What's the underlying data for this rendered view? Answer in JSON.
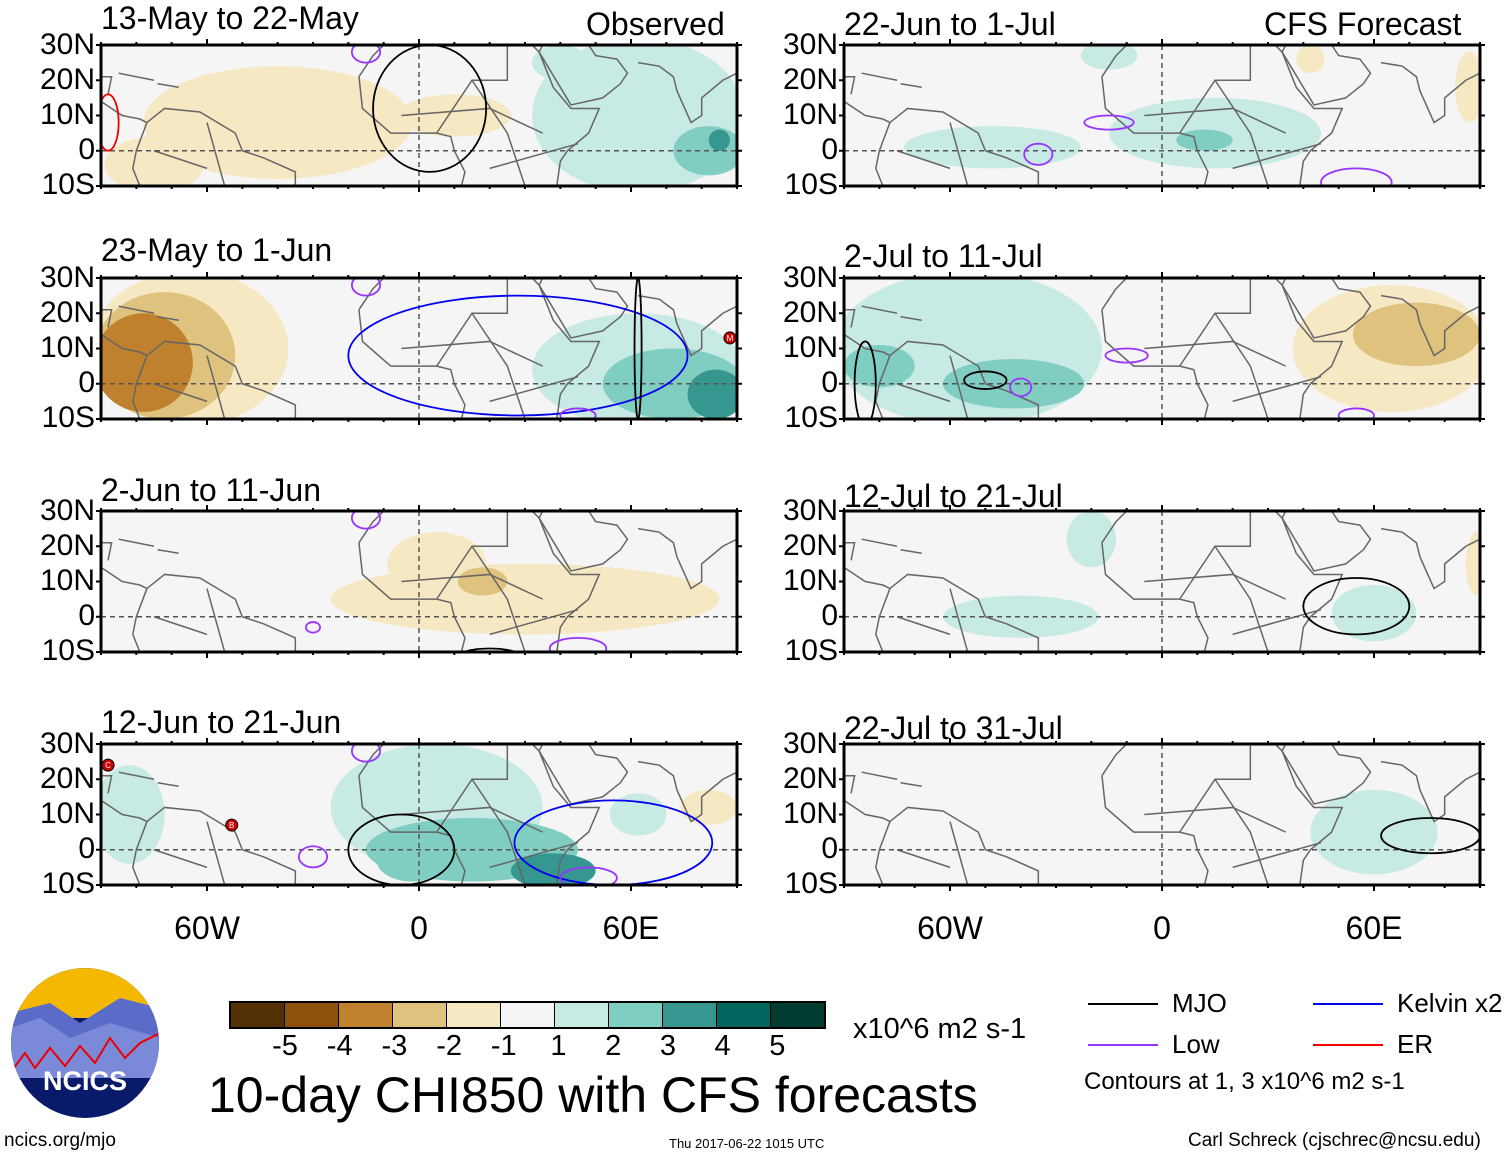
{
  "header": {
    "observed_label": "Observed",
    "forecast_label": "CFS Forecast"
  },
  "axes": {
    "lat_labels": [
      "30N",
      "20N",
      "10N",
      "0",
      "10S"
    ],
    "lon_labels": [
      "60W",
      "0",
      "60E"
    ],
    "lon_range": [
      -90,
      90
    ],
    "lat_range": [
      -10,
      30
    ]
  },
  "colors": {
    "levels": [
      "#543005",
      "#8c510a",
      "#bf812d",
      "#dfc27d",
      "#f6e8c3",
      "#f5f5f5",
      "#c7eae5",
      "#80cdc1",
      "#35978f",
      "#01665e",
      "#003c30"
    ],
    "MJO": "#000000",
    "Kelvin": "#0000ee",
    "Low": "#9933ff",
    "ER": "#ee0000"
  },
  "panels": [
    {
      "title": "13-May to 22-May",
      "anomalies": [
        [
          -40,
          8,
          38,
          16,
          -1
        ],
        [
          -75,
          -4,
          14,
          8,
          -1
        ],
        [
          10,
          10,
          16,
          6,
          -1
        ],
        [
          62,
          10,
          30,
          22,
          1
        ],
        [
          82,
          0,
          10,
          7,
          2
        ],
        [
          85,
          3,
          3,
          3,
          3
        ],
        [
          40,
          25,
          8,
          5,
          1
        ]
      ],
      "contours": [
        [
          "MJO",
          3,
          12,
          16,
          18
        ],
        [
          "ER",
          -88,
          8,
          3,
          8
        ],
        [
          "Low",
          -15,
          28,
          4,
          3
        ]
      ],
      "markers": []
    },
    {
      "title": "23-May to 1-Jun",
      "anomalies": [
        [
          -65,
          10,
          28,
          22,
          -1
        ],
        [
          -72,
          8,
          20,
          18,
          -2
        ],
        [
          -78,
          6,
          14,
          14,
          -3
        ],
        [
          62,
          4,
          30,
          16,
          1
        ],
        [
          72,
          0,
          20,
          10,
          2
        ],
        [
          84,
          -3,
          8,
          7,
          3
        ]
      ],
      "contours": [
        [
          "Kelvin",
          28,
          8,
          48,
          17
        ],
        [
          "MJO",
          62,
          10,
          1,
          20
        ],
        [
          "Low",
          -15,
          28,
          4,
          3
        ],
        [
          "Low",
          45,
          -9,
          5,
          2
        ]
      ],
      "markers": [
        [
          88,
          13,
          "M"
        ]
      ]
    },
    {
      "title": "2-Jun to 11-Jun",
      "anomalies": [
        [
          30,
          5,
          55,
          10,
          -1
        ],
        [
          5,
          15,
          14,
          9,
          -1
        ],
        [
          18,
          10,
          7,
          4,
          -2
        ]
      ],
      "contours": [
        [
          "Low",
          -15,
          28,
          4,
          3
        ],
        [
          "Low",
          -30,
          -3,
          2,
          1.5
        ],
        [
          "Low",
          45,
          -9,
          8,
          3
        ],
        [
          "MJO",
          20,
          -12,
          10,
          3
        ]
      ],
      "markers": []
    },
    {
      "title": "12-Jun to 21-Jun",
      "anomalies": [
        [
          5,
          12,
          30,
          18,
          1
        ],
        [
          -82,
          10,
          10,
          14,
          1
        ],
        [
          15,
          0,
          30,
          9,
          2
        ],
        [
          -2,
          -3,
          10,
          6,
          2
        ],
        [
          38,
          -6,
          12,
          5,
          3
        ],
        [
          62,
          10,
          8,
          6,
          1
        ],
        [
          82,
          12,
          8,
          5,
          -1
        ]
      ],
      "contours": [
        [
          "MJO",
          -5,
          0,
          15,
          10
        ],
        [
          "Kelvin",
          55,
          2,
          28,
          12
        ],
        [
          "Low",
          -30,
          -2,
          4,
          3
        ],
        [
          "Low",
          -15,
          28,
          4,
          3
        ],
        [
          "Low",
          48,
          -8,
          8,
          3
        ]
      ],
      "markers": [
        [
          -88,
          24,
          "C"
        ],
        [
          -53,
          7,
          "B"
        ]
      ]
    },
    {
      "title": "22-Jun to 1-Jul",
      "anomalies": [
        [
          -48,
          1,
          25,
          6,
          1
        ],
        [
          15,
          5,
          30,
          10,
          1
        ],
        [
          -15,
          27,
          8,
          4,
          1
        ],
        [
          12,
          3,
          8,
          3,
          2
        ],
        [
          87,
          18,
          4,
          10,
          -1
        ],
        [
          42,
          26,
          4,
          4,
          -1
        ]
      ],
      "contours": [
        [
          "Low",
          -35,
          -1,
          4,
          3
        ],
        [
          "Low",
          -15,
          8,
          7,
          2
        ],
        [
          "Low",
          55,
          -9,
          10,
          4
        ]
      ],
      "markers": []
    },
    {
      "title": "2-Jul to 11-Jul",
      "anomalies": [
        [
          -55,
          10,
          38,
          22,
          1
        ],
        [
          -42,
          0,
          20,
          7,
          2
        ],
        [
          -80,
          5,
          10,
          6,
          2
        ],
        [
          65,
          10,
          28,
          18,
          -1
        ],
        [
          72,
          14,
          18,
          9,
          -2
        ]
      ],
      "contours": [
        [
          "MJO",
          -50,
          1,
          6,
          2.5
        ],
        [
          "MJO",
          -84,
          0,
          3,
          12
        ],
        [
          "Low",
          -10,
          8,
          6,
          2
        ],
        [
          "Low",
          -40,
          -1,
          3,
          2.5
        ],
        [
          "Low",
          55,
          -9,
          5,
          2
        ]
      ],
      "markers": []
    },
    {
      "title": "12-Jul to 21-Jul",
      "anomalies": [
        [
          -40,
          0,
          22,
          6,
          1
        ],
        [
          -20,
          22,
          7,
          8,
          1
        ],
        [
          60,
          1,
          12,
          8,
          1
        ],
        [
          89,
          15,
          3,
          9,
          -1
        ]
      ],
      "contours": [
        [
          "MJO",
          55,
          3,
          15,
          8
        ]
      ],
      "markers": []
    },
    {
      "title": "22-Jul to 31-Jul",
      "anomalies": [
        [
          60,
          5,
          18,
          12,
          1
        ]
      ],
      "contours": [
        [
          "MJO",
          76,
          4,
          14,
          5
        ]
      ],
      "markers": []
    }
  ],
  "colorbar": {
    "labels": [
      "-5",
      "-4",
      "-3",
      "-2",
      "-1",
      "1",
      "2",
      "3",
      "4",
      "5"
    ],
    "units": "x10^6 m2 s-1"
  },
  "legend": {
    "items": [
      {
        "name": "MJO",
        "key": "MJO"
      },
      {
        "name": "Kelvin x2",
        "key": "Kelvin"
      },
      {
        "name": "Low",
        "key": "Low"
      },
      {
        "name": "ER",
        "key": "ER"
      }
    ],
    "note": "Contours at 1, 3 x10^6 m2 s-1"
  },
  "footer": {
    "title": "10-day CHI850 with CFS forecasts",
    "logo_text": "NCICS",
    "url": "ncics.org/mjo",
    "timestamp": "Thu 2017-06-22 1015 UTC",
    "author": "Carl Schreck (cjschrec@ncsu.edu)"
  }
}
